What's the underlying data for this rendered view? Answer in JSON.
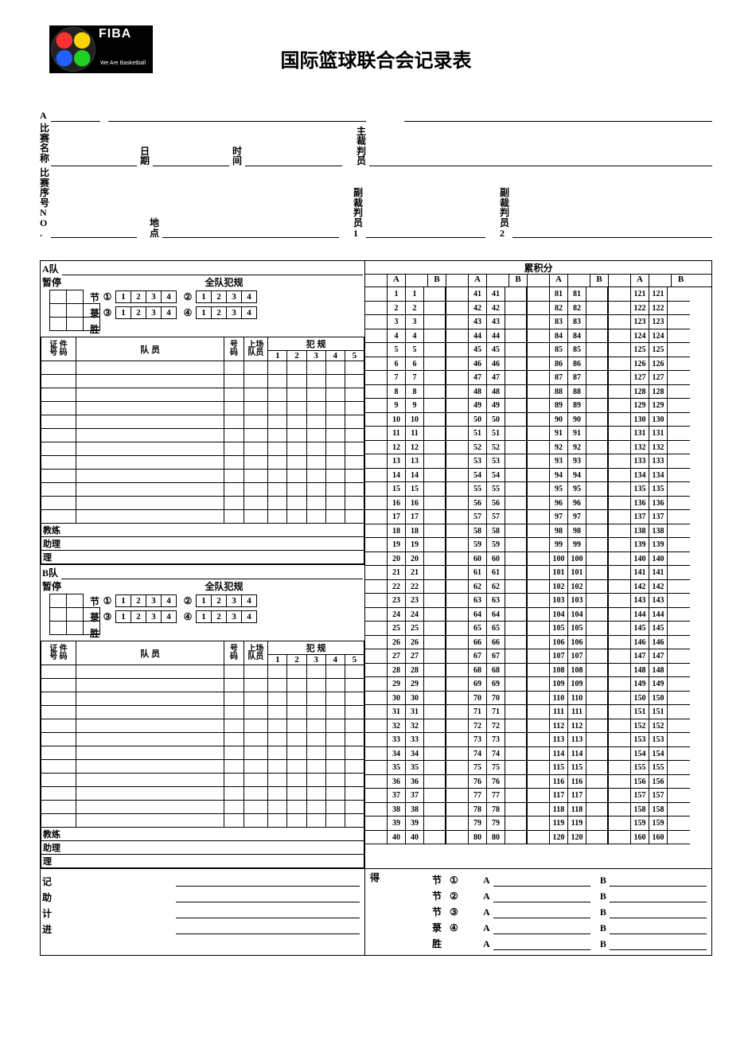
{
  "title": "国际篮球联合会记录表",
  "logo": {
    "brand": "FIBA",
    "tagline": "We Are Basketball"
  },
  "header": {
    "team_a_prefix": "A",
    "competition_label": "比赛名称",
    "date_label": "日期",
    "time_label": "时间",
    "referee_label": "主裁判员",
    "game_no_label": "比赛序号NO.",
    "venue_label": "地点",
    "umpire1_label": "副裁判员1",
    "umpire2_label": "副裁判员2"
  },
  "team_block": {
    "a_label": "A队",
    "b_label": "B队",
    "timeouts_label": "暂停",
    "team_fouls_label": "全队犯规",
    "quarter_label": "节",
    "extra_label": "菉",
    "win_label": "胜",
    "circled": [
      "①",
      "②",
      "③",
      "④"
    ],
    "box_nums": [
      "1",
      "2",
      "3",
      "4"
    ],
    "roster_headers": {
      "license": "证 件",
      "number": "号 码",
      "player": "队   员",
      "jersey_top": "号",
      "jersey_bot": "码",
      "starter_top": "上场",
      "starter_bot": "队员",
      "fouls_label": "犯   规",
      "foul_cols": [
        "1",
        "2",
        "3",
        "4",
        "5"
      ]
    },
    "coach_label": "教练",
    "assist1_label": "助理",
    "roster_rows": 12
  },
  "running_score": {
    "title": "累积分",
    "col_a": "A",
    "col_b": "B",
    "ranges": [
      [
        1,
        40
      ],
      [
        41,
        80
      ],
      [
        81,
        120
      ],
      [
        121,
        160
      ]
    ]
  },
  "bottom": {
    "scorer_label": "记",
    "assist_scorer_label": "助",
    "timer_label": "计",
    "shot_clock_label": "进",
    "score_label": "得",
    "period_rows": [
      {
        "l": "节",
        "c": "①",
        "a": "A",
        "b": "B"
      },
      {
        "l": "节",
        "c": "②",
        "a": "A",
        "b": "B"
      },
      {
        "l": "节",
        "c": "③",
        "a": "A",
        "b": "B"
      },
      {
        "l": "菉",
        "c": "④",
        "a": "A",
        "b": "B"
      },
      {
        "l": "胜",
        "c": "",
        "a": "A",
        "b": "B"
      }
    ]
  },
  "style": {
    "border_color": "#000000",
    "background": "#ffffff",
    "title_fontsize": 24,
    "body_fontsize": 12,
    "small_fontsize": 11
  }
}
